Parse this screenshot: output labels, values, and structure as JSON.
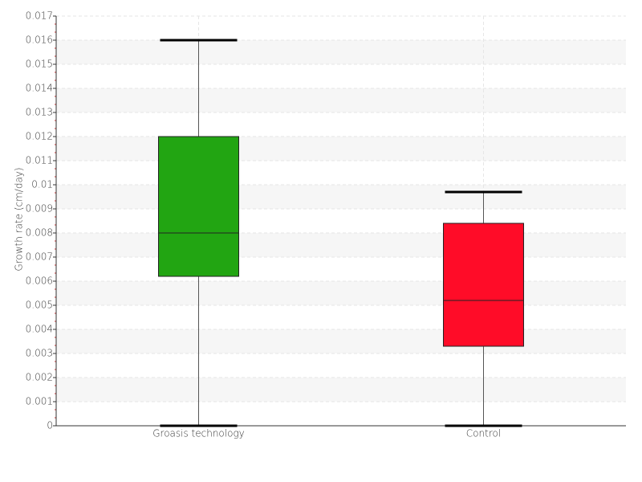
{
  "chart_data": {
    "type": "box",
    "y_label": "Growth rate (cm/day)",
    "categories": [
      "Groasis technology",
      "Control"
    ],
    "boxes": [
      {
        "min": 0,
        "q1": 0.0062,
        "median": 0.008,
        "q3": 0.012,
        "max": 0.016,
        "color": "#22a512"
      },
      {
        "min": 0,
        "q1": 0.0033,
        "median": 0.0052,
        "q3": 0.0084,
        "max": 0.0097,
        "color": "#ff0c28"
      }
    ],
    "ylim": [
      0,
      0.017
    ],
    "yticks": [
      0,
      0.001,
      0.002,
      0.003,
      0.004,
      0.005,
      0.006,
      0.007,
      0.008,
      0.009,
      0.01,
      0.011,
      0.012,
      0.013,
      0.014,
      0.015,
      0.016,
      0.017
    ],
    "grid": true
  }
}
